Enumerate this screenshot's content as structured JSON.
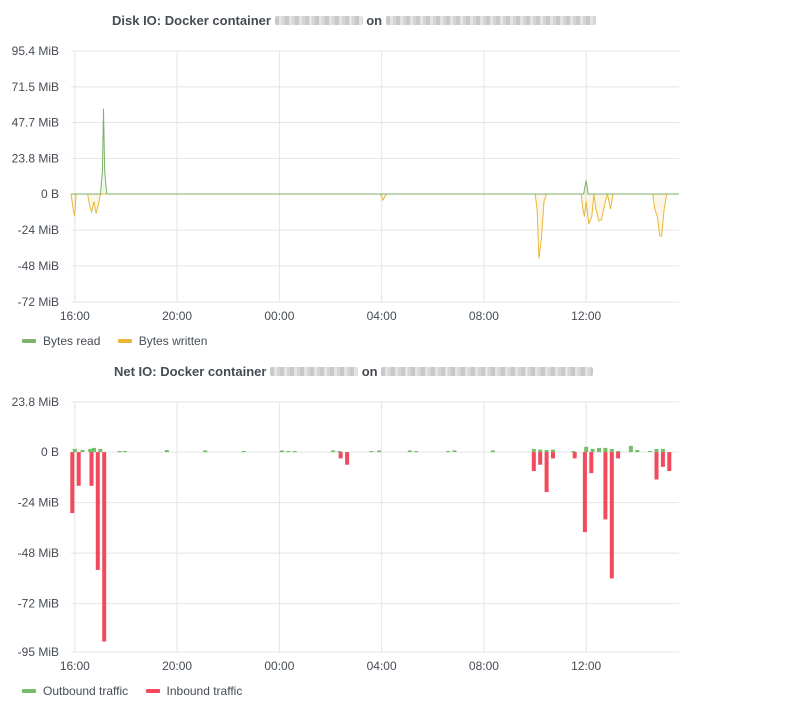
{
  "panels": [
    {
      "title_prefix": "Disk IO: Docker container",
      "title_mid": "on",
      "colors": {
        "Bytes read": "#7eb26d",
        "Bytes written": "#eab839"
      },
      "legend": [
        {
          "label": "Bytes read",
          "color": "#7eb26d"
        },
        {
          "label": "Bytes written",
          "color": "#eab839"
        }
      ]
    },
    {
      "title_prefix": "Net IO: Docker container",
      "title_mid": "on",
      "colors": {
        "Outbound traffic": "#73bf69",
        "Inbound traffic": "#f2495c"
      },
      "legend": [
        {
          "label": "Outbound traffic",
          "color": "#73bf69"
        },
        {
          "label": "Inbound traffic",
          "color": "#f2495c"
        }
      ]
    }
  ],
  "chart_data": [
    {
      "type": "area",
      "ylim": [
        -72,
        95.4
      ],
      "y_ticks": [
        "95.4 MiB",
        "71.5 MiB",
        "47.7 MiB",
        "23.8 MiB",
        "0 B",
        "-24 MiB",
        "-48 MiB",
        "-72 MiB"
      ],
      "y_tick_values": [
        95.4,
        71.5,
        47.7,
        23.8,
        0,
        -24,
        -48,
        -72
      ],
      "x_hours_range": [
        15.85,
        15.78
      ],
      "x_ticks": [
        "16:00",
        "20:00",
        "00:00",
        "04:00",
        "08:00",
        "12:00"
      ],
      "x_tick_hours": [
        16,
        20,
        24,
        28,
        32,
        36
      ],
      "series": [
        {
          "name": "Bytes read",
          "x": [
            15.85,
            17.0,
            17.08,
            17.12,
            17.17,
            17.25,
            35.9,
            36.0,
            36.08,
            39.63
          ],
          "y": [
            0,
            0,
            15,
            57,
            15,
            0,
            0,
            9,
            0,
            0
          ]
        },
        {
          "name": "Bytes written",
          "x": [
            15.85,
            15.95,
            16.0,
            16.05,
            16.5,
            16.58,
            16.66,
            16.75,
            16.83,
            16.92,
            17.0,
            17.08,
            17.17,
            17.25,
            27.95,
            28.05,
            28.12,
            28.2,
            34.0,
            34.08,
            34.15,
            34.25,
            34.35,
            34.45,
            35.8,
            35.87,
            35.93,
            36.0,
            36.1,
            36.22,
            36.3,
            36.38,
            36.5,
            36.6,
            36.75,
            36.83,
            36.95,
            37.05,
            37.15,
            37.25,
            37.35,
            38.6,
            38.68,
            38.78,
            38.88,
            38.95,
            39.05,
            39.15,
            39.63
          ],
          "y": [
            0,
            -12,
            -15,
            0,
            0,
            -8,
            -12,
            -5,
            -13,
            -7,
            0,
            0,
            0,
            0,
            0,
            -4,
            -2,
            0,
            0,
            -10,
            -43,
            -30,
            -5,
            0,
            0,
            -10,
            -15,
            -5,
            -20,
            -15,
            0,
            -10,
            -18,
            -17,
            -5,
            0,
            -10,
            0,
            0,
            0,
            0,
            0,
            -10,
            -15,
            -28,
            -28,
            -10,
            0,
            0
          ]
        }
      ]
    },
    {
      "type": "bar",
      "ylim": [
        -95,
        23.8
      ],
      "y_ticks": [
        "23.8 MiB",
        "0 B",
        "-24 MiB",
        "-48 MiB",
        "-72 MiB",
        "-95 MiB"
      ],
      "y_tick_values": [
        23.8,
        0,
        -24,
        -48,
        -72,
        -95
      ],
      "x_hours_range": [
        15.85,
        15.78
      ],
      "x_ticks": [
        "16:00",
        "20:00",
        "00:00",
        "04:00",
        "08:00",
        "12:00"
      ],
      "x_tick_hours": [
        16,
        20,
        24,
        28,
        32,
        36
      ],
      "series": [
        {
          "name": "Outbound traffic",
          "x": [
            16.0,
            16.3,
            16.6,
            16.75,
            17.0,
            17.75,
            17.95,
            19.6,
            21.1,
            22.6,
            24.1,
            24.35,
            24.6,
            26.1,
            26.35,
            27.6,
            27.9,
            29.1,
            29.35,
            30.6,
            30.85,
            32.35,
            33.95,
            34.2,
            34.45,
            34.7,
            35.5,
            36.0,
            36.25,
            36.5,
            36.75,
            37.0,
            37.25,
            37.75,
            38.0,
            38.5,
            38.75,
            39.0
          ],
          "y": [
            1.5,
            1.0,
            1.5,
            2.0,
            1.5,
            0.5,
            0.5,
            1.0,
            0.8,
            0.5,
            0.8,
            0.5,
            0.5,
            0.8,
            0.5,
            0.5,
            0.8,
            0.8,
            0.5,
            0.5,
            0.8,
            0.8,
            1.5,
            1.2,
            1.0,
            1.2,
            0.5,
            2.5,
            1.5,
            2.0,
            2.0,
            1.5,
            0.5,
            3.0,
            1.0,
            0.5,
            1.5,
            1.5
          ]
        },
        {
          "name": "Inbound traffic",
          "x": [
            15.9,
            16.15,
            16.65,
            16.9,
            17.15,
            26.4,
            26.65,
            33.95,
            34.2,
            34.45,
            34.7,
            35.55,
            35.95,
            36.2,
            36.75,
            37.0,
            37.25,
            38.75,
            39.0,
            39.25
          ],
          "y": [
            -29,
            -16,
            -16,
            -56,
            -90,
            -3,
            -6,
            -9,
            -6,
            -19,
            -3,
            -3,
            -38,
            -10,
            -32,
            -60,
            -3,
            -13,
            -7,
            -9
          ]
        }
      ]
    }
  ]
}
